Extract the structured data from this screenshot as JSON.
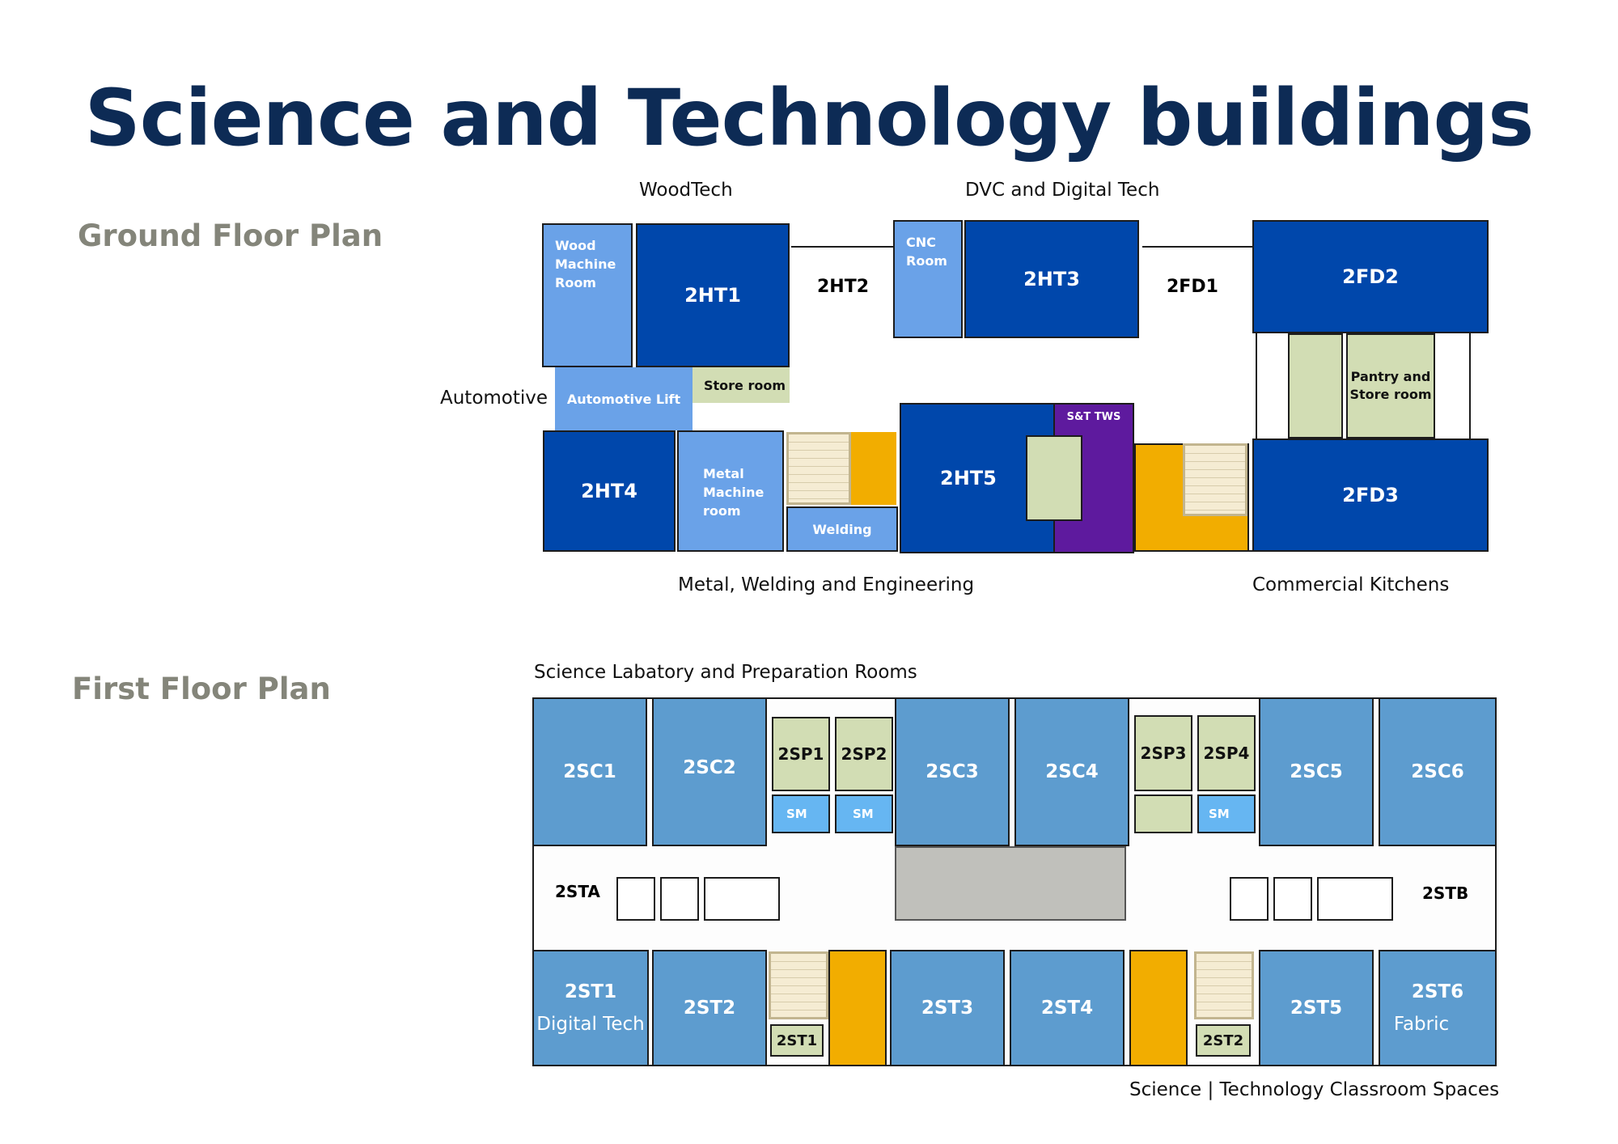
{
  "title": "Science and Technology buildings",
  "ground": {
    "plan_label": "Ground Floor Plan",
    "captions": {
      "woodtech": "WoodTech",
      "dvc": "DVC and Digital Tech",
      "automotive": "Automotive",
      "metal": "Metal, Welding and Engineering",
      "kitchens": "Commercial Kitchens"
    },
    "rooms": {
      "wood_machine": "Wood Machine Room",
      "ht1": "2HT1",
      "ht2": "2HT2",
      "cnc": "CNC Room",
      "ht3": "2HT3",
      "fd1": "2FD1",
      "fd2": "2FD2",
      "auto_lift": "Automotive Lift",
      "store_room": "Store room",
      "pantry": "Pantry and Store room",
      "ht4": "2HT4",
      "metal_machine": "Metal Machine room",
      "welding": "Welding",
      "ht5": "2HT5",
      "st_tws": "S&T TWS",
      "fd3": "2FD3"
    }
  },
  "first": {
    "plan_label": "First Floor Plan",
    "captions": {
      "lab": "Science Labatory and Preparation Rooms",
      "classroom": "Science | Technology Classroom Spaces"
    },
    "rooms": {
      "sc1": "2SC1",
      "sc2": "2SC2",
      "sp1": "2SP1",
      "sp2": "2SP2",
      "sc3": "2SC3",
      "sc4": "2SC4",
      "sp3": "2SP3",
      "sp4": "2SP4",
      "sc5": "2SC5",
      "sc6": "2SC6",
      "sm": "SM",
      "sta": "2STA",
      "stb": "2STB",
      "st1": "2ST1",
      "st2": "2ST2",
      "st3": "2ST3",
      "st4": "2ST4",
      "st5": "2ST5",
      "st6": "2ST6",
      "st1_small": "2ST1",
      "st2_small": "2ST2",
      "digital_tech": "Digital Tech",
      "fabric": "Fabric"
    }
  },
  "colors": {
    "title": "#0d2b55",
    "dark_blue": "#0047ab",
    "light_blue": "#6aa2e8",
    "sage": "#d2ddb4",
    "gold": "#f2ad00",
    "purple": "#5e1a9e",
    "classroom_blue": "#5d9ccf",
    "sm_blue": "#66b6f2",
    "grey": "#c0c0bb"
  }
}
